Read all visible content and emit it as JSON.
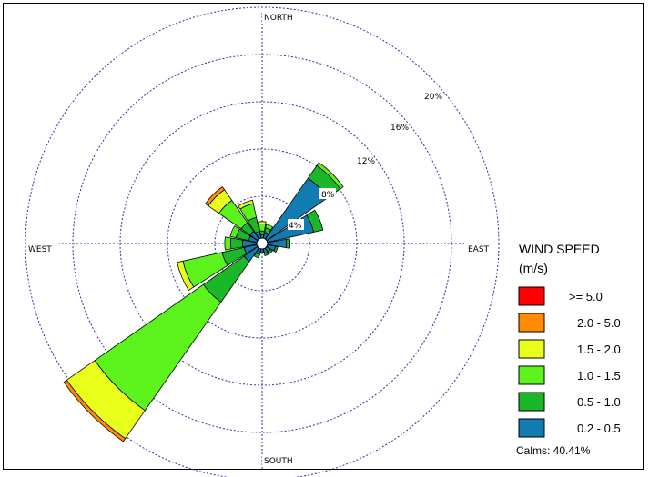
{
  "chart_data": {
    "type": "wind-rose",
    "ring_labels": [
      "4%",
      "8%",
      "12%",
      "16%",
      "20%"
    ],
    "ring_values": [
      4,
      8,
      12,
      16,
      20
    ],
    "direction_labels": {
      "north": "NORTH",
      "south": "SOUTH",
      "east": "EAST",
      "west": "WEST"
    },
    "legend": {
      "title_line1": "WIND SPEED",
      "title_line2": "(m/s)",
      "bins": [
        {
          "label": ">=  5.0",
          "color": "#ff0000"
        },
        {
          "label": "2.0 -  5.0",
          "color": "#ff8c00"
        },
        {
          "label": "1.5 -  2.0",
          "color": "#e8ff1c"
        },
        {
          "label": "1.0 -  1.5",
          "color": "#5cf21c"
        },
        {
          "label": "0.5 -  1.0",
          "color": "#1ab829"
        },
        {
          "label": "0.2 -  0.5",
          "color": "#127bb0"
        }
      ]
    },
    "calms_label": "Calms: 40.41%",
    "bin_order_inner_to_outer": [
      "0.2 -  0.5",
      "0.5 -  1.0",
      "1.0 -  1.5",
      "1.5 -  2.0",
      "2.0 -  5.0",
      ">=  5.0"
    ],
    "petals": [
      {
        "direction": 0,
        "values": [
          0.3,
          0.3,
          0.6,
          0.2,
          0.0,
          0.0
        ]
      },
      {
        "direction": 22.5,
        "values": [
          0.5,
          0.4,
          0.3,
          0.0,
          0.0,
          0.0
        ]
      },
      {
        "direction": 45,
        "values": [
          6.3,
          1.3,
          0.3,
          0.0,
          0.0,
          0.0
        ]
      },
      {
        "direction": 67.5,
        "values": [
          4.0,
          0.8,
          0.0,
          0.0,
          0.0,
          0.0
        ]
      },
      {
        "direction": 90,
        "values": [
          1.6,
          0.3,
          0.0,
          0.0,
          0.0,
          0.0
        ]
      },
      {
        "direction": 112.5,
        "values": [
          0.7,
          0.2,
          0.0,
          0.0,
          0.0,
          0.0
        ]
      },
      {
        "direction": 135,
        "values": [
          0.4,
          0.2,
          0.0,
          0.0,
          0.0,
          0.0
        ]
      },
      {
        "direction": 157.5,
        "values": [
          0.4,
          0.2,
          0.0,
          0.0,
          0.0,
          0.0
        ]
      },
      {
        "direction": 180,
        "values": [
          0.3,
          0.0,
          0.0,
          0.0,
          0.0,
          0.0
        ]
      },
      {
        "direction": 202.5,
        "values": [
          0.5,
          0.3,
          0.0,
          0.0,
          0.0,
          0.0
        ]
      },
      {
        "direction": 225,
        "values": [
          1.4,
          4.2,
          11.2,
          2.9,
          0.3,
          0.0
        ]
      },
      {
        "direction": 247.5,
        "values": [
          1.1,
          1.9,
          3.4,
          0.5,
          0.0,
          0.0
        ]
      },
      {
        "direction": 270,
        "values": [
          1.2,
          1.0,
          0.5,
          0.0,
          0.0,
          0.0
        ]
      },
      {
        "direction": 292.5,
        "values": [
          0.7,
          1.1,
          0.5,
          0.0,
          0.0,
          0.0
        ]
      },
      {
        "direction": 315,
        "values": [
          0.8,
          0.9,
          2.3,
          1.1,
          0.3,
          0.0
        ]
      },
      {
        "direction": 337.5,
        "values": [
          0.6,
          1.2,
          1.2,
          0.3,
          0.0,
          0.0
        ]
      }
    ]
  }
}
